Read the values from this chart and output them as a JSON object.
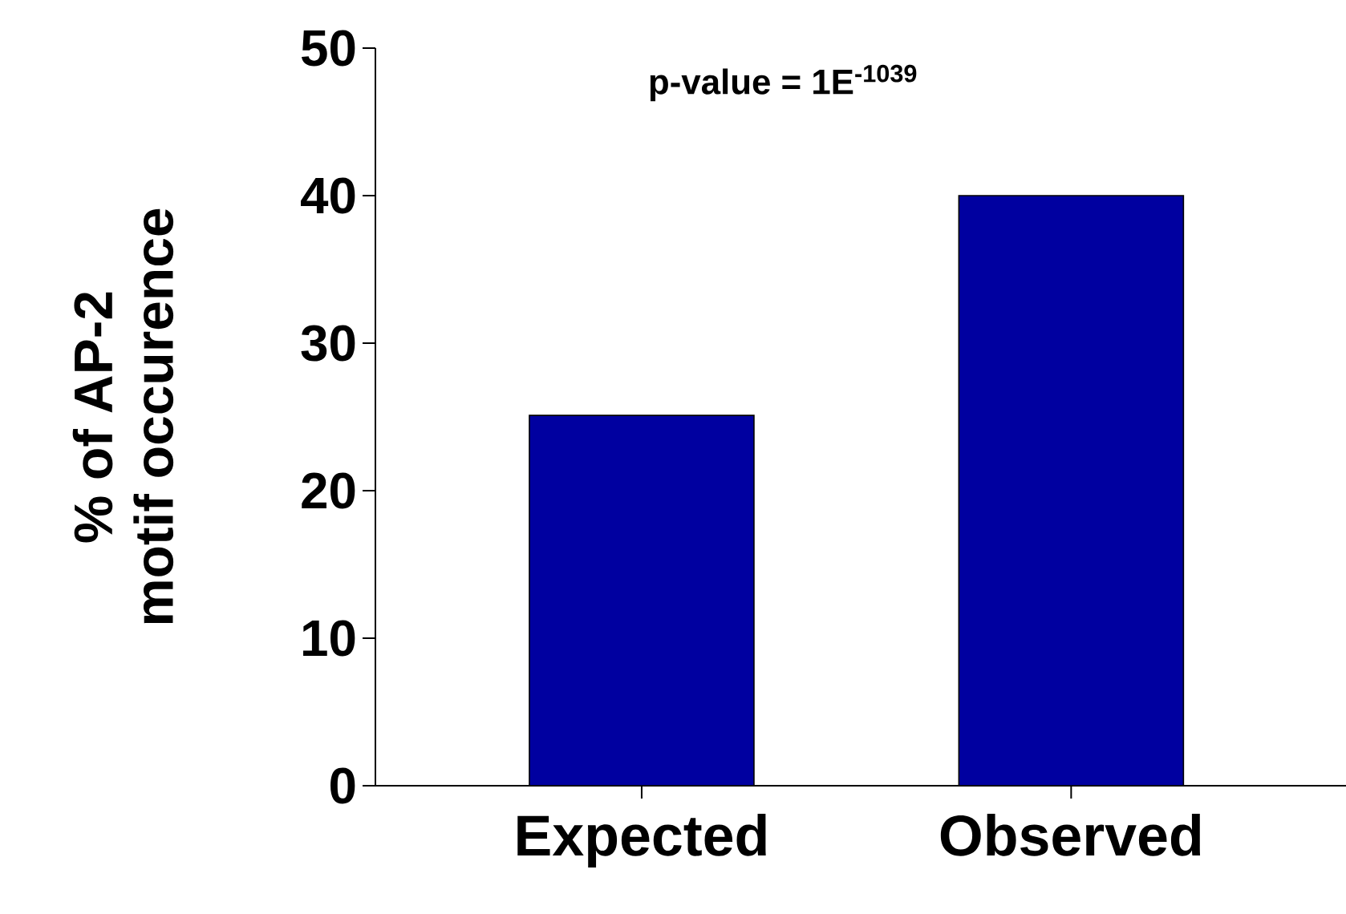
{
  "chart_data": {
    "type": "bar",
    "categories": [
      "Expected",
      "Observed"
    ],
    "values": [
      25.1,
      40.0
    ],
    "color": "#0000a0",
    "ylabel": "% of AP-2 motif occurence",
    "ylim": [
      0,
      50
    ],
    "yticks": [
      0,
      10,
      20,
      30,
      40,
      50
    ],
    "annotations": [
      "p-value = 1E$^{-1039}$"
    ],
    "grid": false
  }
}
